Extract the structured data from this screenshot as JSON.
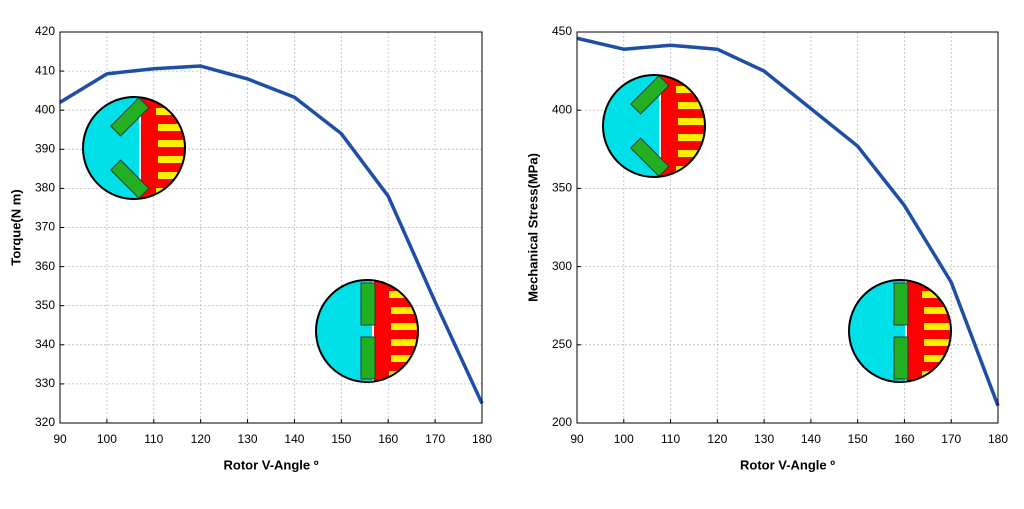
{
  "chart_data": [
    {
      "type": "line",
      "x": [
        90,
        100,
        110,
        120,
        130,
        140,
        150,
        160,
        170,
        180
      ],
      "values": [
        402,
        409.3,
        410.6,
        411.3,
        408,
        403.3,
        394,
        378,
        351,
        325
      ],
      "color": "#1f4ea6",
      "xlabel": "Rotor V-Angle º",
      "ylabel": "Torque(N m)",
      "xlim": [
        90,
        180
      ],
      "ylim": [
        320,
        420
      ],
      "xticks": [
        90,
        100,
        110,
        120,
        130,
        140,
        150,
        160,
        170,
        180
      ],
      "yticks": [
        320,
        330,
        340,
        350,
        360,
        370,
        380,
        390,
        400,
        410,
        420
      ],
      "grid": true
    },
    {
      "type": "line",
      "x": [
        90,
        100,
        110,
        120,
        130,
        140,
        150,
        160,
        170,
        180
      ],
      "values": [
        446,
        439,
        441.5,
        439,
        425,
        401,
        377,
        339,
        290,
        211
      ],
      "color": "#1f4ea6",
      "xlabel": "Rotor V-Angle º",
      "ylabel": "Mechanical Stress(MPa)",
      "xlim": [
        90,
        180
      ],
      "ylim": [
        200,
        450
      ],
      "xticks": [
        90,
        100,
        110,
        120,
        130,
        140,
        150,
        160,
        170,
        180
      ],
      "yticks": [
        200,
        250,
        300,
        350,
        400,
        450
      ],
      "grid": true
    }
  ]
}
